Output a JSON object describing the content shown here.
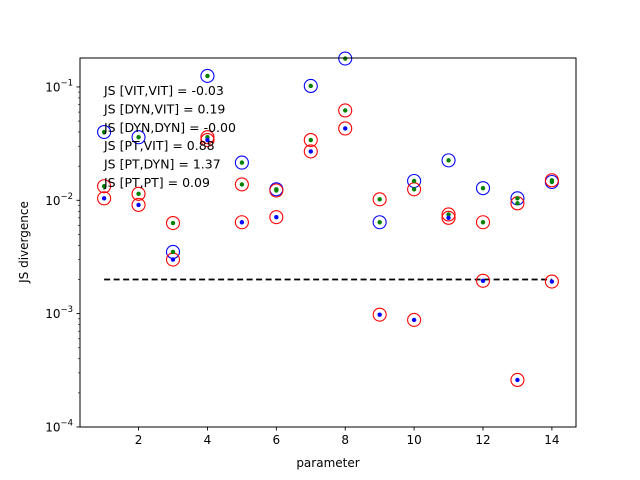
{
  "chart_data": {
    "type": "scatter",
    "title": "",
    "xlabel": "parameter",
    "ylabel": "JS divergence",
    "xlim": [
      0.3,
      14.7
    ],
    "ylim": [
      0.0001,
      0.18
    ],
    "yscale": "log",
    "grid": false,
    "legend": "none",
    "x_ticks": [
      2,
      4,
      6,
      8,
      10,
      12,
      14
    ],
    "y_ticks": [
      0.0001,
      0.001,
      0.01,
      0.1
    ],
    "y_tick_labels": [
      {
        "base": "10",
        "exp": "−4"
      },
      {
        "base": "10",
        "exp": "−3"
      },
      {
        "base": "10",
        "exp": "−2"
      },
      {
        "base": "10",
        "exp": "−1"
      }
    ],
    "threshold": {
      "value": 0.002,
      "x_from": 1,
      "x_to": 14,
      "style": "dashed",
      "color": "#000000"
    },
    "annotations": [
      "JS [VIT,VIT] = -0.03",
      "JS [DYN,VIT] = 0.19",
      "JS [DYN,DYN] = -0.00",
      "JS [PT,VIT] = 0.88",
      "JS [PT,DYN] = 1.37",
      "JS [PT,PT] = 0.09"
    ],
    "series": [
      {
        "marker": "open-circle",
        "color": "#0000ff",
        "points": [
          [
            1,
            0.04
          ],
          [
            2,
            0.036
          ],
          [
            3,
            0.0035
          ],
          [
            4,
            0.125
          ],
          [
            5,
            0.0215
          ],
          [
            6,
            0.0125
          ],
          [
            7,
            0.102
          ],
          [
            8,
            0.178
          ],
          [
            9,
            0.0064
          ],
          [
            10,
            0.0148
          ],
          [
            11,
            0.0225
          ],
          [
            12,
            0.0128
          ],
          [
            13,
            0.0104
          ],
          [
            14,
            0.0145
          ]
        ]
      },
      {
        "marker": "open-circle",
        "color": "#ff0000",
        "points": [
          [
            1,
            0.0133
          ],
          [
            1,
            0.0104
          ],
          [
            2,
            0.0114
          ],
          [
            2,
            0.0091
          ],
          [
            3,
            0.0063
          ],
          [
            3,
            0.003
          ],
          [
            4,
            0.036
          ],
          [
            4,
            0.034
          ],
          [
            5,
            0.0138
          ],
          [
            5,
            0.0064
          ],
          [
            6,
            0.0122
          ],
          [
            6,
            0.0071
          ],
          [
            7,
            0.034
          ],
          [
            7,
            0.027
          ],
          [
            8,
            0.062
          ],
          [
            8,
            0.043
          ],
          [
            9,
            0.0102
          ],
          [
            9,
            0.00098
          ],
          [
            10,
            0.0125
          ],
          [
            10,
            0.00088
          ],
          [
            11,
            0.0075
          ],
          [
            11,
            0.007
          ],
          [
            12,
            0.0064
          ],
          [
            12,
            0.00195
          ],
          [
            13,
            0.0094
          ],
          [
            13,
            0.00026
          ],
          [
            14,
            0.015
          ],
          [
            14,
            0.00192
          ]
        ]
      },
      {
        "marker": "dot",
        "color": "#008000",
        "points": [
          [
            1,
            0.04
          ],
          [
            1,
            0.0133
          ],
          [
            2,
            0.036
          ],
          [
            2,
            0.0114
          ],
          [
            3,
            0.0063
          ],
          [
            3,
            0.0035
          ],
          [
            4,
            0.125
          ],
          [
            4,
            0.036
          ],
          [
            5,
            0.0215
          ],
          [
            5,
            0.0138
          ],
          [
            6,
            0.0125
          ],
          [
            6,
            0.0122
          ],
          [
            7,
            0.102
          ],
          [
            7,
            0.034
          ],
          [
            8,
            0.178
          ],
          [
            8,
            0.062
          ],
          [
            9,
            0.0102
          ],
          [
            9,
            0.0064
          ],
          [
            10,
            0.0148
          ],
          [
            10,
            0.0125
          ],
          [
            11,
            0.0225
          ],
          [
            11,
            0.0075
          ],
          [
            12,
            0.0128
          ],
          [
            12,
            0.0064
          ],
          [
            13,
            0.0104
          ],
          [
            13,
            0.0094
          ],
          [
            14,
            0.0145
          ],
          [
            14,
            0.015
          ]
        ]
      },
      {
        "marker": "dot",
        "color": "#0000ff",
        "points": [
          [
            1,
            0.0104
          ],
          [
            2,
            0.0091
          ],
          [
            3,
            0.003
          ],
          [
            4,
            0.034
          ],
          [
            5,
            0.0064
          ],
          [
            6,
            0.0071
          ],
          [
            7,
            0.027
          ],
          [
            8,
            0.043
          ],
          [
            9,
            0.00098
          ],
          [
            10,
            0.00088
          ],
          [
            11,
            0.007
          ],
          [
            12,
            0.00195
          ],
          [
            13,
            0.00026
          ],
          [
            14,
            0.00192
          ]
        ]
      }
    ]
  }
}
